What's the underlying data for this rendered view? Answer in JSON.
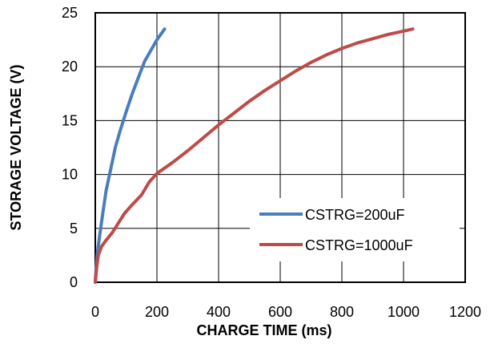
{
  "chart_data": {
    "type": "line",
    "title": "",
    "xlabel": "CHARGE TIME (ms)",
    "ylabel": "STORAGE  VOLTAGE (V)",
    "xlim": [
      0,
      1200
    ],
    "ylim": [
      0,
      25
    ],
    "xticks": [
      "0",
      "200",
      "400",
      "600",
      "800",
      "1000",
      "1200"
    ],
    "yticks": [
      "0",
      "5",
      "10",
      "15",
      "20",
      "25"
    ],
    "grid": true,
    "legend_position": "bottom-right",
    "series": [
      {
        "name": "CSTRG=200uF",
        "color": "#4a7ebb",
        "points": [
          [
            0,
            0
          ],
          [
            3,
            1.5
          ],
          [
            8,
            3
          ],
          [
            15,
            4.5
          ],
          [
            25,
            6.5
          ],
          [
            35,
            8.5
          ],
          [
            50,
            10.5
          ],
          [
            65,
            12.5
          ],
          [
            80,
            14
          ],
          [
            100,
            15.8
          ],
          [
            120,
            17.5
          ],
          [
            140,
            19
          ],
          [
            160,
            20.5
          ],
          [
            180,
            21.5
          ],
          [
            200,
            22.5
          ],
          [
            225,
            23.5
          ]
        ]
      },
      {
        "name": "CSTRG=1000uF",
        "color": "#be4b48",
        "points": [
          [
            0,
            0
          ],
          [
            5,
            1.5
          ],
          [
            10,
            2.5
          ],
          [
            20,
            3.3
          ],
          [
            35,
            3.9
          ],
          [
            55,
            4.6
          ],
          [
            75,
            5.5
          ],
          [
            95,
            6.4
          ],
          [
            120,
            7.2
          ],
          [
            150,
            8.1
          ],
          [
            175,
            9.3
          ],
          [
            200,
            10.1
          ],
          [
            250,
            11.1
          ],
          [
            300,
            12.2
          ],
          [
            350,
            13.4
          ],
          [
            400,
            14.6
          ],
          [
            450,
            15.7
          ],
          [
            500,
            16.8
          ],
          [
            550,
            17.8
          ],
          [
            600,
            18.7
          ],
          [
            650,
            19.6
          ],
          [
            700,
            20.4
          ],
          [
            750,
            21.1
          ],
          [
            800,
            21.7
          ],
          [
            850,
            22.2
          ],
          [
            900,
            22.6
          ],
          [
            950,
            23.0
          ],
          [
            1000,
            23.3
          ],
          [
            1030,
            23.5
          ]
        ]
      }
    ]
  }
}
